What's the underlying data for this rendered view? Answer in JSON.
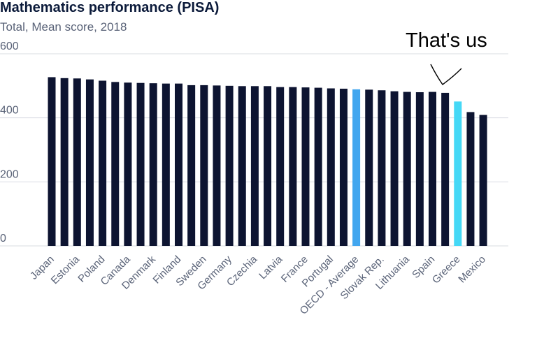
{
  "title": "Mathematics performance (PISA)",
  "subtitle": "Total, Mean score, 2018",
  "annotation": "That's us",
  "colors": {
    "bar": "#0d1431",
    "oecd_average": "#42a6ef",
    "highlight": "#45d8f6",
    "grid": "#d9dce2",
    "axis_text": "#5a6378",
    "title": "#0b1a3a"
  },
  "chart_data": {
    "type": "bar",
    "title": "Mathematics performance (PISA)",
    "subtitle": "Total, Mean score, 2018",
    "ylim": [
      0,
      600
    ],
    "yticks": [
      0,
      200,
      400,
      600
    ],
    "grid": true,
    "categories": [
      "Japan",
      "",
      "Estonia",
      "",
      "Poland",
      "",
      "Canada",
      "",
      "Denmark",
      "",
      "Finland",
      "",
      "Sweden",
      "",
      "Germany",
      "",
      "Czechia",
      "",
      "Latvia",
      "",
      "France",
      "",
      "Portugal",
      "",
      "OECD - Average",
      "",
      "Slovak Rep.",
      "",
      "Lithuania",
      "",
      "Spain",
      "",
      "Greece",
      "",
      "Mexico"
    ],
    "values": [
      527,
      524,
      523,
      520,
      516,
      512,
      510,
      509,
      508,
      507,
      507,
      502,
      502,
      501,
      500,
      499,
      499,
      499,
      496,
      496,
      495,
      494,
      492,
      491,
      489,
      488,
      486,
      483,
      481,
      480,
      481,
      478,
      451,
      418,
      409
    ],
    "highlight": {
      "OECD - Average": "oecd_average",
      "32": "highlight"
    }
  }
}
